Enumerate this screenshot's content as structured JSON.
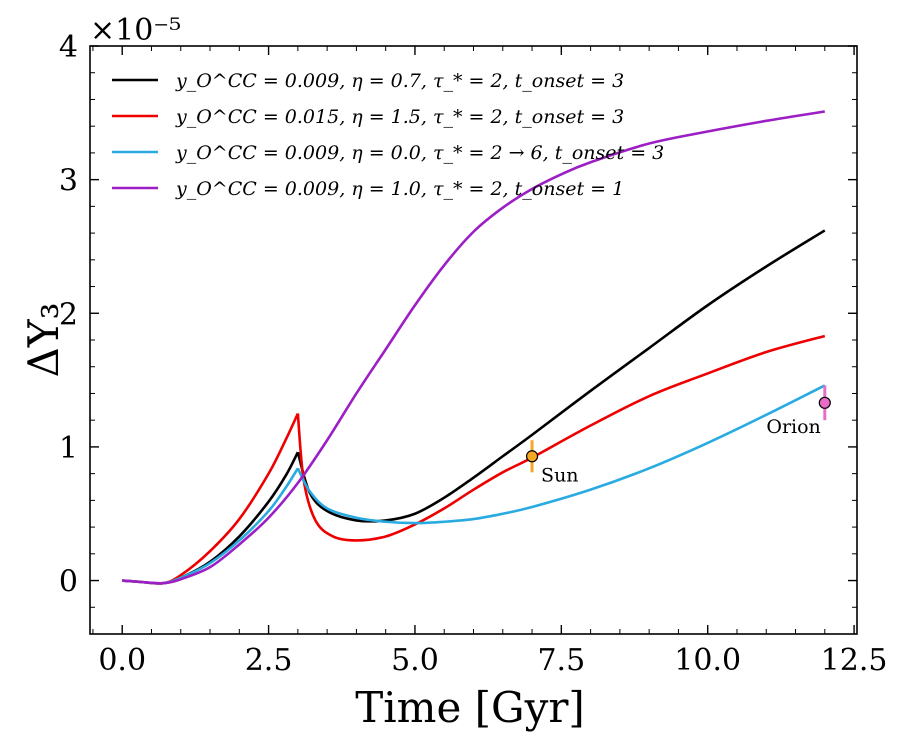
{
  "chart_data": {
    "type": "line",
    "title": "",
    "xlabel": "Time [Gyr]",
    "ylabel": "ΔY₃",
    "y_offset_label": "×10⁻⁵",
    "xlim": [
      -0.55,
      12.55
    ],
    "ylim": [
      -0.4,
      4.0
    ],
    "xticks": [
      0.0,
      2.5,
      5.0,
      7.5,
      10.0,
      12.5
    ],
    "xtick_labels": [
      "0.0",
      "2.5",
      "5.0",
      "7.5",
      "10.0",
      "12.5"
    ],
    "yticks": [
      0,
      1,
      2,
      3,
      4
    ],
    "ytick_labels": [
      "0",
      "1",
      "2",
      "3",
      "4"
    ],
    "legend_position": "top-left",
    "series": [
      {
        "name": "y_O^CC = 0.009, η = 0.7, τ_* = 2, t_onset = 3",
        "color": "#000000",
        "x": [
          0,
          0.3,
          0.7,
          1.0,
          1.5,
          2.0,
          2.5,
          2.8,
          3.0,
          3.2,
          3.5,
          4.0,
          4.5,
          5.0,
          5.5,
          6.0,
          6.5,
          7.0,
          8.0,
          9.0,
          10.0,
          11.0,
          12.0
        ],
        "values": [
          0,
          -0.01,
          -0.02,
          0.02,
          0.14,
          0.33,
          0.59,
          0.79,
          0.96,
          0.66,
          0.52,
          0.45,
          0.45,
          0.5,
          0.62,
          0.77,
          0.93,
          1.09,
          1.42,
          1.74,
          2.06,
          2.35,
          2.62
        ]
      },
      {
        "name": "y_O^CC = 0.015, η = 1.5, τ_* = 2, t_onset = 3",
        "color": "#ee0000",
        "x": [
          0,
          0.3,
          0.7,
          1.0,
          1.5,
          2.0,
          2.5,
          2.8,
          3.0,
          3.1,
          3.3,
          3.6,
          4.0,
          4.5,
          5.0,
          5.5,
          6.0,
          6.5,
          7.0,
          8.0,
          9.0,
          10.0,
          11.0,
          12.0
        ],
        "values": [
          0,
          -0.01,
          -0.02,
          0.04,
          0.22,
          0.46,
          0.8,
          1.06,
          1.25,
          0.75,
          0.45,
          0.33,
          0.3,
          0.33,
          0.42,
          0.54,
          0.68,
          0.81,
          0.92,
          1.16,
          1.38,
          1.55,
          1.71,
          1.83
        ]
      },
      {
        "name": "y_O^CC = 0.009, η = 0.0, τ_* = 2 → 6, t_onset = 3",
        "color": "#29abe2",
        "x": [
          0,
          0.3,
          0.7,
          1.0,
          1.5,
          2.0,
          2.5,
          2.8,
          3.0,
          3.2,
          3.5,
          4.0,
          4.5,
          5.0,
          5.5,
          6.0,
          6.5,
          7.0,
          8.0,
          9.0,
          10.0,
          11.0,
          12.0
        ],
        "values": [
          0,
          -0.01,
          -0.02,
          0.02,
          0.13,
          0.3,
          0.52,
          0.7,
          0.84,
          0.67,
          0.54,
          0.47,
          0.44,
          0.43,
          0.44,
          0.46,
          0.5,
          0.55,
          0.68,
          0.84,
          1.03,
          1.24,
          1.46
        ]
      },
      {
        "name": "y_O^CC = 0.009, η = 1.0, τ_* = 2, t_onset = 1",
        "color": "#9b1fc4",
        "x": [
          0,
          0.3,
          0.7,
          1.0,
          1.5,
          2.0,
          2.5,
          3.0,
          3.5,
          4.0,
          4.5,
          5.0,
          5.5,
          6.0,
          6.5,
          7.0,
          7.5,
          8.0,
          9.0,
          10.0,
          11.0,
          12.0
        ],
        "values": [
          0,
          -0.01,
          -0.02,
          0.01,
          0.1,
          0.27,
          0.47,
          0.73,
          1.05,
          1.4,
          1.73,
          2.06,
          2.36,
          2.61,
          2.79,
          2.93,
          3.04,
          3.13,
          3.27,
          3.36,
          3.44,
          3.51
        ]
      }
    ],
    "points": [
      {
        "label": "Sun",
        "x": 7.0,
        "y": 0.93,
        "yerr": 0.12,
        "color": "#f5a623",
        "err_color": "#f5a623"
      },
      {
        "label": "Orion",
        "x": 12.0,
        "y": 1.33,
        "yerr": 0.13,
        "color": "#e86bc8",
        "err_color": "#e86bc8"
      }
    ]
  }
}
